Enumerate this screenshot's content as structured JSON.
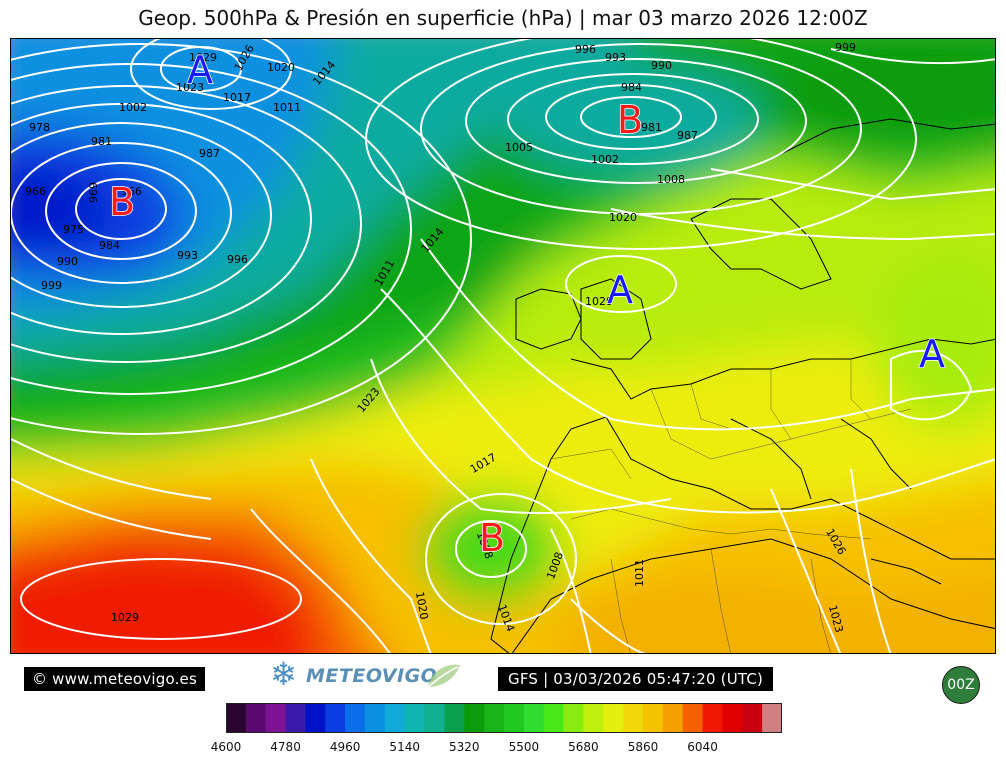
{
  "title": "Geop. 500hPa & Presión en superficie (hPa) | mar 03 marzo 2026 12:00Z",
  "footer": {
    "copyright": "© www.meteovigo.es",
    "logo_text": "METEOVIGO",
    "run_info": "GFS | 03/03/2026 05:47:20 (UTC)",
    "run_badge": "00Z"
  },
  "pressure_centers": [
    {
      "label": "A",
      "type": "high",
      "color": "#1a1aff"
    },
    {
      "label": "B",
      "type": "low",
      "color": "#ff1a1a"
    },
    {
      "label": "B",
      "type": "low",
      "color": "#ff1a1a"
    },
    {
      "label": "A",
      "type": "high",
      "color": "#1a1aff"
    },
    {
      "label": "A",
      "type": "high",
      "color": "#1a1aff"
    },
    {
      "label": "B",
      "type": "low",
      "color": "#ff1a1a"
    }
  ],
  "isobar_labels": [
    "1029",
    "1026",
    "1023",
    "1020",
    "1014",
    "1017",
    "1011",
    "1002",
    "978",
    "981",
    "987",
    "966",
    "969",
    "966",
    "975",
    "984",
    "990",
    "993",
    "996",
    "999",
    "996",
    "993",
    "990",
    "984",
    "981",
    "987",
    "1005",
    "1002",
    "1008",
    "1020",
    "999",
    "1014",
    "1011",
    "1029",
    "1023",
    "1017",
    "1008",
    "1008",
    "1020",
    "1014",
    "1011",
    "1026",
    "1023",
    "1029"
  ],
  "colorbar": {
    "colors": [
      "#2a0530",
      "#5a0a6e",
      "#7d1394",
      "#3a1aaa",
      "#0012c8",
      "#0a3ee0",
      "#0a6ee8",
      "#0a90e0",
      "#10aad8",
      "#0fb5b0",
      "#10b090",
      "#0aa050",
      "#0a9a0a",
      "#18b418",
      "#20c820",
      "#30dc30",
      "#48e818",
      "#88ec10",
      "#bff010",
      "#e4ef10",
      "#f0d808",
      "#f5c200",
      "#f6a000",
      "#f56000",
      "#f01800",
      "#e00000",
      "#c80010",
      "#d08080"
    ],
    "tick_labels": [
      "4600",
      "4780",
      "4960",
      "5140",
      "5320",
      "5500",
      "5680",
      "5860",
      "6040"
    ]
  }
}
